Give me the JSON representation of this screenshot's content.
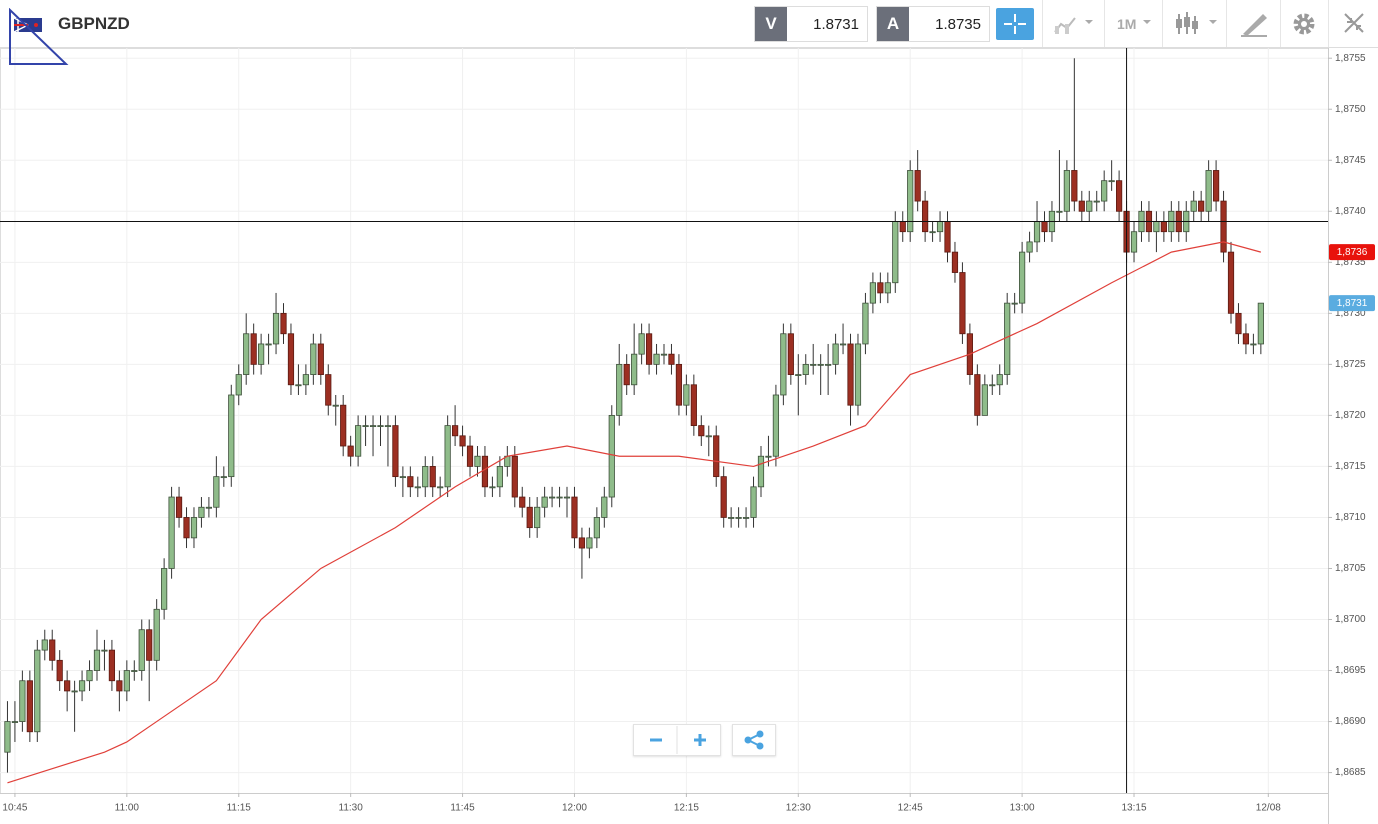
{
  "header": {
    "symbol": "GBPNZD",
    "bid_letter": "V",
    "bid": "1.8731",
    "ask_letter": "A",
    "ask": "1.8735",
    "interval": "1M"
  },
  "chart_data": {
    "type": "candlestick",
    "candles": [
      [
        1.8687,
        1.8692,
        1.8685,
        1.869
      ],
      [
        1.869,
        1.8692,
        1.8688,
        1.869
      ],
      [
        1.869,
        1.8695,
        1.8689,
        1.8694
      ],
      [
        1.8694,
        1.8695,
        1.8688,
        1.8689
      ],
      [
        1.8689,
        1.8698,
        1.8688,
        1.8697
      ],
      [
        1.8697,
        1.8699,
        1.8696,
        1.8698
      ],
      [
        1.8698,
        1.8699,
        1.8695,
        1.8696
      ],
      [
        1.8696,
        1.8697,
        1.8693,
        1.8694
      ],
      [
        1.8694,
        1.8695,
        1.8691,
        1.8693
      ],
      [
        1.8693,
        1.8694,
        1.8689,
        1.8693
      ],
      [
        1.8693,
        1.8695,
        1.8692,
        1.8694
      ],
      [
        1.8694,
        1.8696,
        1.8693,
        1.8695
      ],
      [
        1.8695,
        1.8699,
        1.8694,
        1.8697
      ],
      [
        1.8697,
        1.8698,
        1.8695,
        1.8697
      ],
      [
        1.8697,
        1.8698,
        1.8693,
        1.8694
      ],
      [
        1.8694,
        1.8695,
        1.8691,
        1.8693
      ],
      [
        1.8693,
        1.8696,
        1.8692,
        1.8695
      ],
      [
        1.8695,
        1.8696,
        1.8694,
        1.8695
      ],
      [
        1.8695,
        1.87,
        1.8694,
        1.8699
      ],
      [
        1.8699,
        1.87,
        1.8692,
        1.8696
      ],
      [
        1.8696,
        1.8702,
        1.8695,
        1.8701
      ],
      [
        1.8701,
        1.8706,
        1.87,
        1.8705
      ],
      [
        1.8705,
        1.8713,
        1.8704,
        1.8712
      ],
      [
        1.8712,
        1.8713,
        1.8709,
        1.871
      ],
      [
        1.871,
        1.8711,
        1.8707,
        1.8708
      ],
      [
        1.8708,
        1.8711,
        1.8707,
        1.871
      ],
      [
        1.871,
        1.8712,
        1.8709,
        1.8711
      ],
      [
        1.8711,
        1.8712,
        1.871,
        1.8711
      ],
      [
        1.8711,
        1.8716,
        1.871,
        1.8714
      ],
      [
        1.8714,
        1.8715,
        1.8713,
        1.8714
      ],
      [
        1.8714,
        1.8723,
        1.8713,
        1.8722
      ],
      [
        1.8722,
        1.8725,
        1.8721,
        1.8724
      ],
      [
        1.8724,
        1.873,
        1.8723,
        1.8728
      ],
      [
        1.8728,
        1.8729,
        1.8724,
        1.8725
      ],
      [
        1.8725,
        1.8728,
        1.8724,
        1.8727
      ],
      [
        1.8727,
        1.8728,
        1.8725,
        1.8727
      ],
      [
        1.8727,
        1.8732,
        1.8726,
        1.873
      ],
      [
        1.873,
        1.8731,
        1.8727,
        1.8728
      ],
      [
        1.8728,
        1.8729,
        1.8722,
        1.8723
      ],
      [
        1.8723,
        1.8725,
        1.8722,
        1.8723
      ],
      [
        1.8723,
        1.8725,
        1.8722,
        1.8724
      ],
      [
        1.8724,
        1.8728,
        1.8723,
        1.8727
      ],
      [
        1.8727,
        1.8728,
        1.8723,
        1.8724
      ],
      [
        1.8724,
        1.8725,
        1.872,
        1.8721
      ],
      [
        1.8721,
        1.8722,
        1.8719,
        1.8721
      ],
      [
        1.8721,
        1.8722,
        1.8716,
        1.8717
      ],
      [
        1.8717,
        1.8718,
        1.8715,
        1.8716
      ],
      [
        1.8716,
        1.872,
        1.8715,
        1.8719
      ],
      [
        1.8719,
        1.872,
        1.8717,
        1.8719
      ],
      [
        1.8719,
        1.872,
        1.8716,
        1.8719
      ],
      [
        1.8719,
        1.872,
        1.8717,
        1.8719
      ],
      [
        1.8719,
        1.872,
        1.8715,
        1.8719
      ],
      [
        1.8719,
        1.872,
        1.8713,
        1.8714
      ],
      [
        1.8714,
        1.8715,
        1.8712,
        1.8714
      ],
      [
        1.8714,
        1.8715,
        1.8712,
        1.8713
      ],
      [
        1.8713,
        1.8714,
        1.8712,
        1.8713
      ],
      [
        1.8713,
        1.8716,
        1.8712,
        1.8715
      ],
      [
        1.8715,
        1.8716,
        1.8712,
        1.8713
      ],
      [
        1.8713,
        1.8714,
        1.8712,
        1.8713
      ],
      [
        1.8713,
        1.872,
        1.8712,
        1.8719
      ],
      [
        1.8719,
        1.8721,
        1.8717,
        1.8718
      ],
      [
        1.8718,
        1.8719,
        1.8716,
        1.8717
      ],
      [
        1.8717,
        1.8718,
        1.8714,
        1.8715
      ],
      [
        1.8715,
        1.8717,
        1.8714,
        1.8716
      ],
      [
        1.8716,
        1.8717,
        1.8712,
        1.8713
      ],
      [
        1.8713,
        1.8714,
        1.8712,
        1.8713
      ],
      [
        1.8713,
        1.8716,
        1.8712,
        1.8715
      ],
      [
        1.8715,
        1.8717,
        1.8714,
        1.8716
      ],
      [
        1.8716,
        1.8717,
        1.8711,
        1.8712
      ],
      [
        1.8712,
        1.8713,
        1.871,
        1.8711
      ],
      [
        1.8711,
        1.8712,
        1.8708,
        1.8709
      ],
      [
        1.8709,
        1.8712,
        1.8708,
        1.8711
      ],
      [
        1.8711,
        1.8713,
        1.871,
        1.8712
      ],
      [
        1.8712,
        1.8713,
        1.8711,
        1.8712
      ],
      [
        1.8712,
        1.8713,
        1.8711,
        1.8712
      ],
      [
        1.8712,
        1.8713,
        1.871,
        1.8712
      ],
      [
        1.8712,
        1.8713,
        1.8707,
        1.8708
      ],
      [
        1.8708,
        1.8709,
        1.8704,
        1.8707
      ],
      [
        1.8707,
        1.8709,
        1.8706,
        1.8708
      ],
      [
        1.8708,
        1.8711,
        1.8707,
        1.871
      ],
      [
        1.871,
        1.8713,
        1.8709,
        1.8712
      ],
      [
        1.8712,
        1.8721,
        1.8711,
        1.872
      ],
      [
        1.872,
        1.8727,
        1.8719,
        1.8725
      ],
      [
        1.8725,
        1.8726,
        1.8722,
        1.8723
      ],
      [
        1.8723,
        1.8729,
        1.8722,
        1.8726
      ],
      [
        1.8726,
        1.8729,
        1.8725,
        1.8728
      ],
      [
        1.8728,
        1.8729,
        1.8724,
        1.8725
      ],
      [
        1.8725,
        1.8727,
        1.8724,
        1.8726
      ],
      [
        1.8726,
        1.8727,
        1.8725,
        1.8726
      ],
      [
        1.8726,
        1.8727,
        1.8724,
        1.8725
      ],
      [
        1.8725,
        1.8726,
        1.872,
        1.8721
      ],
      [
        1.8721,
        1.8724,
        1.872,
        1.8723
      ],
      [
        1.8723,
        1.8724,
        1.8718,
        1.8719
      ],
      [
        1.8719,
        1.872,
        1.8717,
        1.8718
      ],
      [
        1.8718,
        1.8719,
        1.8716,
        1.8718
      ],
      [
        1.8718,
        1.8719,
        1.8713,
        1.8714
      ],
      [
        1.8714,
        1.8715,
        1.8709,
        1.871
      ],
      [
        1.871,
        1.8711,
        1.8709,
        1.871
      ],
      [
        1.871,
        1.8711,
        1.8709,
        1.871
      ],
      [
        1.871,
        1.8711,
        1.8709,
        1.871
      ],
      [
        1.871,
        1.8714,
        1.8709,
        1.8713
      ],
      [
        1.8713,
        1.8717,
        1.8712,
        1.8716
      ],
      [
        1.8716,
        1.8718,
        1.8715,
        1.8716
      ],
      [
        1.8716,
        1.8723,
        1.8715,
        1.8722
      ],
      [
        1.8722,
        1.8729,
        1.8721,
        1.8728
      ],
      [
        1.8728,
        1.8729,
        1.8723,
        1.8724
      ],
      [
        1.8724,
        1.8726,
        1.872,
        1.8724
      ],
      [
        1.8724,
        1.8726,
        1.8723,
        1.8725
      ],
      [
        1.8725,
        1.8727,
        1.8724,
        1.8725
      ],
      [
        1.8725,
        1.8726,
        1.8722,
        1.8725
      ],
      [
        1.8725,
        1.8727,
        1.8722,
        1.8725
      ],
      [
        1.8725,
        1.8728,
        1.8724,
        1.8727
      ],
      [
        1.8727,
        1.8729,
        1.8726,
        1.8727
      ],
      [
        1.8727,
        1.8728,
        1.8719,
        1.8721
      ],
      [
        1.8721,
        1.8728,
        1.872,
        1.8727
      ],
      [
        1.8727,
        1.8732,
        1.8726,
        1.8731
      ],
      [
        1.8731,
        1.8734,
        1.873,
        1.8733
      ],
      [
        1.8733,
        1.8734,
        1.8731,
        1.8732
      ],
      [
        1.8732,
        1.8734,
        1.8731,
        1.8733
      ],
      [
        1.8733,
        1.874,
        1.8732,
        1.8739
      ],
      [
        1.8739,
        1.874,
        1.8737,
        1.8738
      ],
      [
        1.8738,
        1.8745,
        1.8737,
        1.8744
      ],
      [
        1.8744,
        1.8746,
        1.874,
        1.8741
      ],
      [
        1.8741,
        1.8742,
        1.8737,
        1.8738
      ],
      [
        1.8738,
        1.8739,
        1.8737,
        1.8738
      ],
      [
        1.8738,
        1.874,
        1.8737,
        1.8739
      ],
      [
        1.8739,
        1.874,
        1.8735,
        1.8736
      ],
      [
        1.8736,
        1.8737,
        1.8733,
        1.8734
      ],
      [
        1.8734,
        1.8735,
        1.8727,
        1.8728
      ],
      [
        1.8728,
        1.8729,
        1.8723,
        1.8724
      ],
      [
        1.8724,
        1.8725,
        1.8719,
        1.872
      ],
      [
        1.872,
        1.8724,
        1.872,
        1.8723
      ],
      [
        1.8723,
        1.8724,
        1.8722,
        1.8723
      ],
      [
        1.8723,
        1.8725,
        1.8722,
        1.8724
      ],
      [
        1.8724,
        1.8732,
        1.8723,
        1.8731
      ],
      [
        1.8731,
        1.8732,
        1.873,
        1.8731
      ],
      [
        1.8731,
        1.8737,
        1.873,
        1.8736
      ],
      [
        1.8736,
        1.8738,
        1.8735,
        1.8737
      ],
      [
        1.8737,
        1.8741,
        1.8736,
        1.8739
      ],
      [
        1.8739,
        1.874,
        1.8737,
        1.8738
      ],
      [
        1.8738,
        1.8741,
        1.8737,
        1.874
      ],
      [
        1.874,
        1.8746,
        1.8739,
        1.874
      ],
      [
        1.874,
        1.8745,
        1.8739,
        1.8744
      ],
      [
        1.8744,
        1.8755,
        1.874,
        1.8741
      ],
      [
        1.8741,
        1.8742,
        1.8739,
        1.874
      ],
      [
        1.874,
        1.8742,
        1.8739,
        1.8741
      ],
      [
        1.8741,
        1.8742,
        1.874,
        1.8741
      ],
      [
        1.8741,
        1.8744,
        1.874,
        1.8743
      ],
      [
        1.8743,
        1.8745,
        1.8742,
        1.8743
      ],
      [
        1.8743,
        1.8744,
        1.8739,
        1.874
      ],
      [
        1.874,
        1.8741,
        1.8735,
        1.8736
      ],
      [
        1.8736,
        1.8739,
        1.8735,
        1.8738
      ],
      [
        1.8738,
        1.8741,
        1.8737,
        1.874
      ],
      [
        1.874,
        1.8741,
        1.8737,
        1.8738
      ],
      [
        1.8738,
        1.874,
        1.8736,
        1.8739
      ],
      [
        1.8739,
        1.874,
        1.8737,
        1.8738
      ],
      [
        1.8738,
        1.8741,
        1.8737,
        1.874
      ],
      [
        1.874,
        1.8741,
        1.8737,
        1.8738
      ],
      [
        1.8738,
        1.8741,
        1.8737,
        1.874
      ],
      [
        1.874,
        1.8742,
        1.8739,
        1.8741
      ],
      [
        1.8741,
        1.8742,
        1.8739,
        1.874
      ],
      [
        1.874,
        1.8745,
        1.8739,
        1.8744
      ],
      [
        1.8744,
        1.8745,
        1.874,
        1.8741
      ],
      [
        1.8741,
        1.8742,
        1.8735,
        1.8736
      ],
      [
        1.8736,
        1.8737,
        1.8729,
        1.873
      ],
      [
        1.873,
        1.8731,
        1.8727,
        1.8728
      ],
      [
        1.8728,
        1.8729,
        1.8726,
        1.8727
      ],
      [
        1.8727,
        1.8728,
        1.8726,
        1.8727
      ],
      [
        1.8727,
        1.8731,
        1.8726,
        1.8731
      ]
    ],
    "up_color": "#8fbc8a",
    "down_color": "#9c2f22",
    "moving_average": {
      "color": "#e0403a",
      "x": [
        1,
        14,
        17,
        21,
        29,
        35,
        43,
        53,
        61,
        68,
        76,
        83,
        91,
        101,
        109,
        116,
        122,
        130,
        139,
        149,
        157,
        164,
        169
      ],
      "values": [
        1.8684,
        1.8687,
        1.8688,
        1.869,
        1.8694,
        1.87,
        1.8705,
        1.8709,
        1.8713,
        1.8716,
        1.8717,
        1.8716,
        1.8716,
        1.8715,
        1.8717,
        1.8719,
        1.8724,
        1.8726,
        1.8729,
        1.8733,
        1.8736,
        1.8737,
        1.8736
      ]
    },
    "xlim": [
      0,
      178
    ],
    "xticks": [
      {
        "value": 2,
        "label": "10:45"
      },
      {
        "value": 17,
        "label": "11:00"
      },
      {
        "value": 32,
        "label": "11:15"
      },
      {
        "value": 47,
        "label": "11:30"
      },
      {
        "value": 62,
        "label": "11:45"
      },
      {
        "value": 77,
        "label": "12:00"
      },
      {
        "value": 92,
        "label": "12:15"
      },
      {
        "value": 107,
        "label": "12:30"
      },
      {
        "value": 122,
        "label": "12:45"
      },
      {
        "value": 137,
        "label": "13:00"
      },
      {
        "value": 152,
        "label": "13:15"
      },
      {
        "value": 170,
        "label": "12/08"
      }
    ],
    "ylim": [
      1.8683,
      1.8756
    ],
    "yticks": [
      {
        "value": 1.8685,
        "label": "1,8685"
      },
      {
        "value": 1.869,
        "label": "1,8690"
      },
      {
        "value": 1.8695,
        "label": "1,8695"
      },
      {
        "value": 1.87,
        "label": "1,8700"
      },
      {
        "value": 1.8705,
        "label": "1,8705"
      },
      {
        "value": 1.871,
        "label": "1,8710"
      },
      {
        "value": 1.8715,
        "label": "1,8715"
      },
      {
        "value": 1.872,
        "label": "1,8720"
      },
      {
        "value": 1.8725,
        "label": "1,8725"
      },
      {
        "value": 1.873,
        "label": "1,8730"
      },
      {
        "value": 1.8735,
        "label": "1,8735"
      },
      {
        "value": 1.874,
        "label": "1,8740"
      },
      {
        "value": 1.8745,
        "label": "1,8745"
      },
      {
        "value": 1.875,
        "label": "1,8750"
      },
      {
        "value": 1.8755,
        "label": "1,8755"
      }
    ],
    "price_labels": [
      {
        "value": 1.8736,
        "label": "1,8736",
        "color": "#e8120c"
      },
      {
        "value": 1.8731,
        "label": "1,8731",
        "color": "#5aace0"
      }
    ],
    "crosshair": {
      "index": 151,
      "value": 1.8739
    },
    "grid": true
  }
}
